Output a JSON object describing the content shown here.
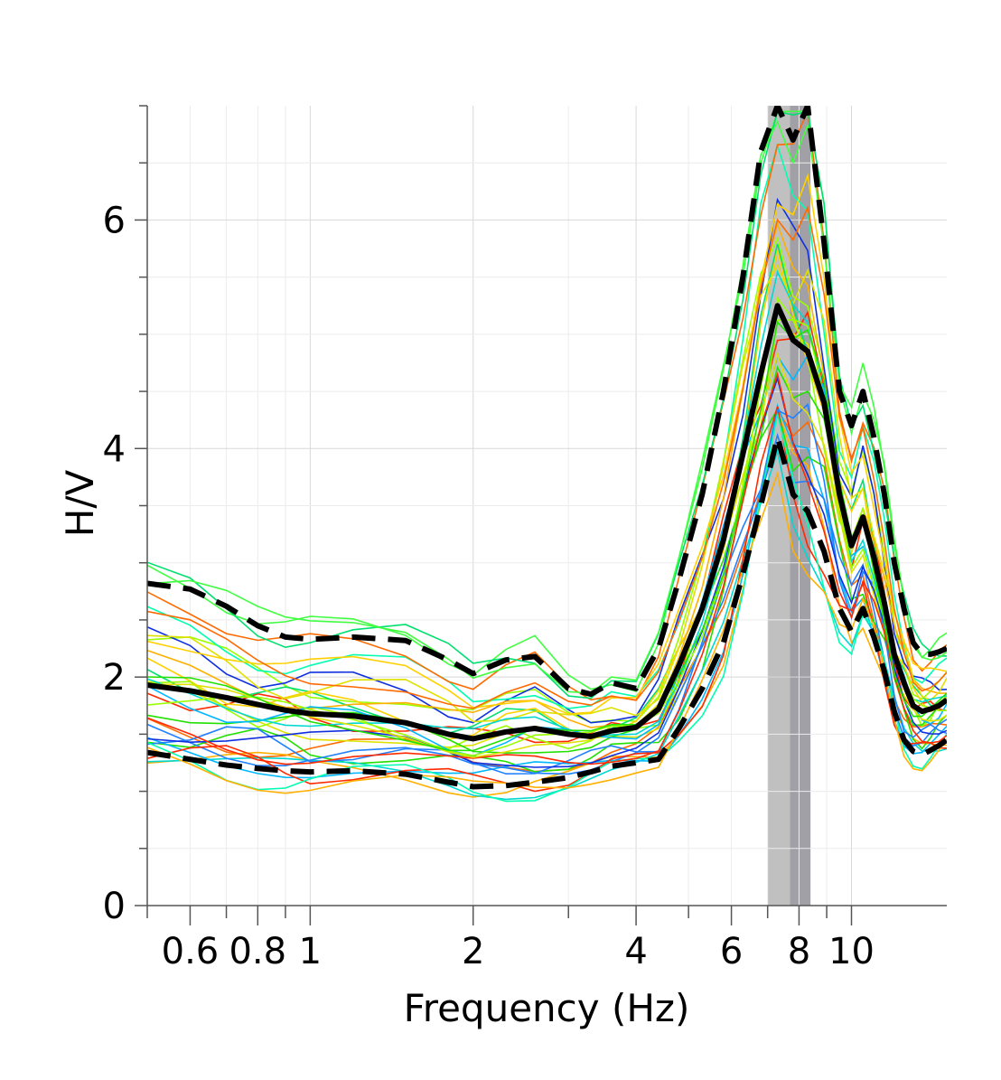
{
  "chart_data": {
    "type": "line",
    "title": "",
    "xlabel": "Frequency (Hz)",
    "ylabel": "H/V",
    "xscale": "log",
    "xlim": [
      0.5,
      15
    ],
    "ylim": [
      0,
      7
    ],
    "grid": true,
    "legend": "none",
    "x_ticks": [
      {
        "value": 0.6,
        "label": "0.6"
      },
      {
        "value": 0.8,
        "label": "0.8"
      },
      {
        "value": 1,
        "label": "1"
      },
      {
        "value": 2,
        "label": "2"
      },
      {
        "value": 4,
        "label": "4"
      },
      {
        "value": 6,
        "label": "6"
      },
      {
        "value": 8,
        "label": "8"
      },
      {
        "value": 10,
        "label": "10"
      }
    ],
    "y_ticks": [
      {
        "value": 0,
        "label": "0"
      },
      {
        "value": 2,
        "label": "2"
      },
      {
        "value": 4,
        "label": "4"
      },
      {
        "value": 6,
        "label": "6"
      }
    ],
    "peak_bands": [
      {
        "from": 7.0,
        "to": 7.7,
        "color": "#c0c0c0"
      },
      {
        "from": 7.7,
        "to": 8.4,
        "color": "#a0a0a6"
      }
    ],
    "x": [
      0.5,
      0.6,
      0.7,
      0.8,
      0.9,
      1,
      1.2,
      1.5,
      1.8,
      2,
      2.3,
      2.6,
      3,
      3.3,
      3.6,
      4,
      4.4,
      4.8,
      5.3,
      5.8,
      6.3,
      6.8,
      7.3,
      7.8,
      8.3,
      8.9,
      9.5,
      10,
      10.5,
      11,
      11.5,
      12,
      12.5,
      13,
      13.5,
      14,
      14.5,
      15
    ],
    "series": [
      {
        "role": "median",
        "color": "#000000",
        "dash": false,
        "values": [
          1.93,
          1.88,
          1.82,
          1.76,
          1.71,
          1.68,
          1.66,
          1.6,
          1.5,
          1.46,
          1.52,
          1.55,
          1.5,
          1.48,
          1.53,
          1.56,
          1.72,
          2.1,
          2.6,
          3.2,
          3.95,
          4.65,
          5.25,
          4.95,
          4.85,
          4.4,
          3.6,
          3.15,
          3.4,
          3.05,
          2.65,
          2.2,
          1.95,
          1.75,
          1.7,
          1.72,
          1.75,
          1.8
        ]
      },
      {
        "role": "upper-std",
        "color": "#000000",
        "dash": true,
        "values": [
          2.82,
          2.77,
          2.62,
          2.45,
          2.35,
          2.33,
          2.35,
          2.32,
          2.15,
          2.03,
          2.15,
          2.18,
          1.9,
          1.85,
          1.95,
          1.9,
          2.25,
          2.85,
          3.6,
          4.5,
          5.5,
          6.6,
          7.0,
          6.7,
          7.0,
          5.8,
          4.5,
          4.2,
          4.5,
          4.1,
          3.6,
          3.0,
          2.6,
          2.3,
          2.2,
          2.2,
          2.22,
          2.25
        ]
      },
      {
        "role": "lower-std",
        "color": "#000000",
        "dash": true,
        "values": [
          1.34,
          1.28,
          1.23,
          1.2,
          1.18,
          1.17,
          1.18,
          1.15,
          1.08,
          1.04,
          1.05,
          1.08,
          1.12,
          1.17,
          1.22,
          1.25,
          1.28,
          1.55,
          1.9,
          2.3,
          2.9,
          3.5,
          4.1,
          3.6,
          3.45,
          3.1,
          2.6,
          2.4,
          2.6,
          2.35,
          2.05,
          1.7,
          1.45,
          1.35,
          1.32,
          1.36,
          1.4,
          1.45
        ]
      }
    ]
  }
}
